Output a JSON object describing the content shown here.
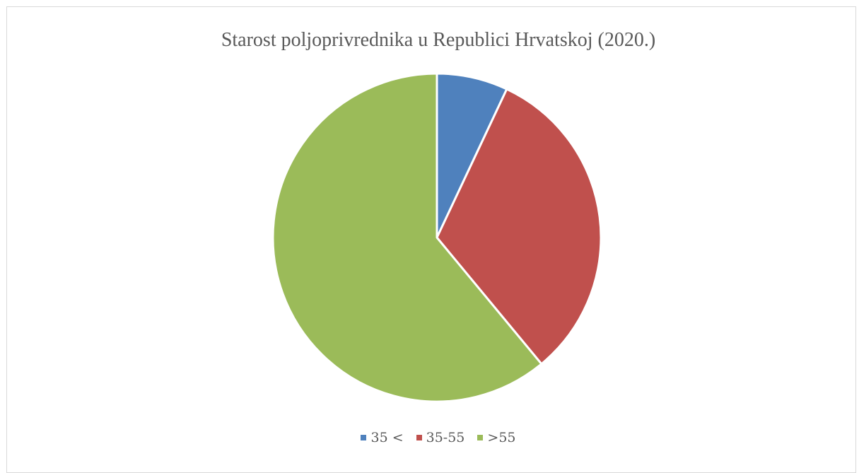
{
  "chart_data": {
    "type": "pie",
    "title": "Starost poljoprivrednika u Republici Hrvatskoj (2020.)",
    "categories": [
      "35 <",
      "35-55",
      ">55"
    ],
    "values": [
      7,
      32,
      61
    ],
    "colors": [
      "#4f81bd",
      "#c0504d",
      "#9bbb59"
    ],
    "legend_position": "bottom"
  }
}
